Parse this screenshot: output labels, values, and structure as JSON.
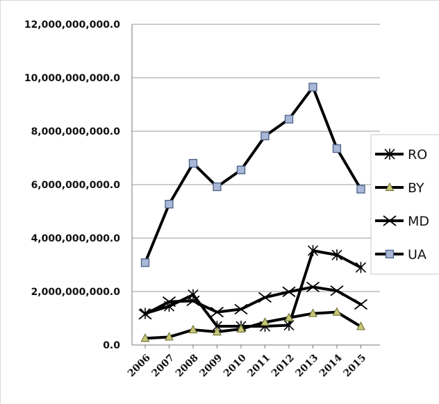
{
  "chart_data": {
    "type": "line",
    "title": "",
    "xlabel": "",
    "ylabel": "",
    "categories": [
      "2006",
      "2007",
      "2008",
      "2009",
      "2010",
      "2011",
      "2012",
      "2013",
      "2014",
      "2015"
    ],
    "ylim": [
      0,
      12000000000
    ],
    "y_ticks": [
      0,
      2000000000,
      4000000000,
      6000000000,
      8000000000,
      10000000000,
      12000000000
    ],
    "y_tick_labels": [
      "0.0",
      "2,000,000,000.0",
      "4,000,000,000.0",
      "6,000,000,000.0",
      "8,000,000,000.0",
      "10,000,000,000.0",
      "12,000,000,000.0"
    ],
    "grid": "horizontal",
    "legend_position": "right",
    "series": [
      {
        "name": "RO",
        "marker": "asterisk",
        "color": "#000000",
        "values": [
          1180000000,
          1450000000,
          1880000000,
          700000000,
          700000000,
          700000000,
          740000000,
          3530000000,
          3370000000,
          2900000000
        ]
      },
      {
        "name": "BY",
        "marker": "triangle",
        "color": "#000000",
        "marker_fill": "#c8c87a",
        "values": [
          250000000,
          300000000,
          570000000,
          490000000,
          600000000,
          850000000,
          1020000000,
          1180000000,
          1230000000,
          690000000
        ]
      },
      {
        "name": "MD",
        "marker": "x",
        "color": "#000000",
        "values": [
          1150000000,
          1620000000,
          1650000000,
          1230000000,
          1340000000,
          1780000000,
          1990000000,
          2170000000,
          2030000000,
          1520000000
        ]
      },
      {
        "name": "UA",
        "marker": "square",
        "color": "#000000",
        "marker_fill": "#a9b8d6",
        "values": [
          3080000000,
          5270000000,
          6800000000,
          5920000000,
          6550000000,
          7820000000,
          8450000000,
          9650000000,
          7350000000,
          5830000000
        ]
      }
    ]
  }
}
